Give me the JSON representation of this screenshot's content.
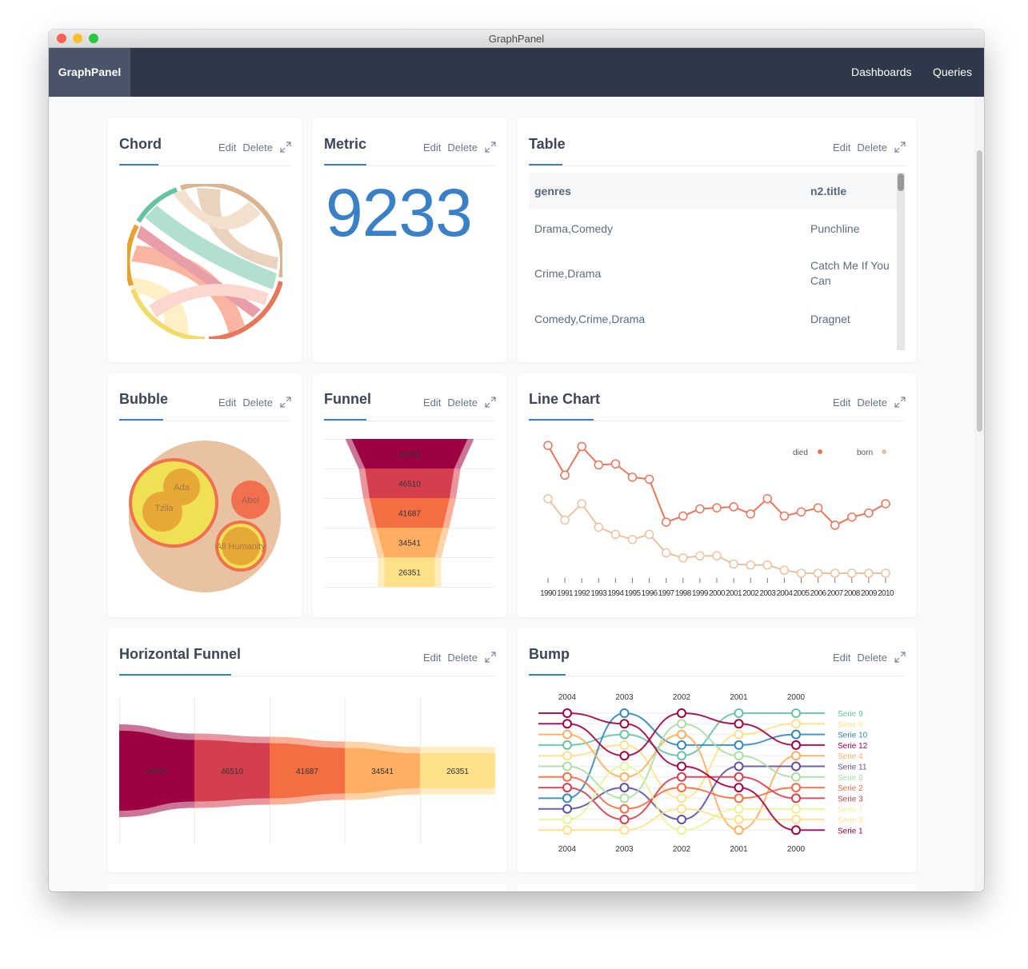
{
  "window": {
    "title": "GraphPanel"
  },
  "nav": {
    "brand": "GraphPanel",
    "links": [
      "Dashboards",
      "Queries"
    ]
  },
  "actions": {
    "edit": "Edit",
    "delete": "Delete"
  },
  "panels": {
    "chord": {
      "title": "Chord"
    },
    "metric": {
      "title": "Metric",
      "value": "9233"
    },
    "table": {
      "title": "Table",
      "headers": [
        "genres",
        "n2.title"
      ],
      "rows": [
        [
          "Drama,Comedy",
          "Punchline"
        ],
        [
          "Crime,Drama",
          "Catch Me If You Can"
        ],
        [
          "Comedy,Crime,Drama",
          "Dragnet"
        ]
      ]
    },
    "bubble": {
      "title": "Bubble",
      "labels": [
        "Ada",
        "Tzila",
        "Abel",
        "All Humanity"
      ]
    },
    "funnel": {
      "title": "Funnel"
    },
    "line": {
      "title": "Line Chart"
    },
    "hfunnel": {
      "title": "Horizontal Funnel"
    },
    "bump": {
      "title": "Bump"
    }
  },
  "chart_data": [
    {
      "type": "funnel",
      "values": [
        60491,
        46510,
        41687,
        34541,
        26351
      ],
      "colors": [
        "#9e0142",
        "#d53e4f",
        "#f46d43",
        "#fdae61",
        "#fee08b"
      ]
    },
    {
      "type": "line",
      "x": [
        1990,
        1991,
        1992,
        1993,
        1994,
        1995,
        1996,
        1997,
        1998,
        1999,
        2000,
        2001,
        2002,
        2003,
        2004,
        2005,
        2006,
        2007,
        2008,
        2009,
        2010
      ],
      "series": [
        {
          "name": "died",
          "color": "#e8765a",
          "values": [
            82,
            53,
            81,
            63,
            64,
            51,
            49,
            7,
            13,
            20,
            21,
            22,
            15,
            30,
            13,
            17,
            21,
            4,
            12,
            16,
            25
          ]
        },
        {
          "name": "born",
          "color": "#e9c3a1",
          "values": [
            30,
            9,
            25,
            2,
            -5,
            -10,
            -5,
            -23,
            -28,
            -26,
            -26,
            -34,
            -35,
            -35,
            -40,
            -43,
            -43,
            -43,
            -43,
            -43,
            -43
          ]
        }
      ],
      "legend": "top-right"
    },
    {
      "type": "funnel-horizontal",
      "values": [
        60491,
        46510,
        41687,
        34541,
        26351
      ],
      "colors": [
        "#9e0142",
        "#d53e4f",
        "#f46d43",
        "#fdae61",
        "#fee08b"
      ]
    },
    {
      "type": "bump",
      "x": [
        "2004",
        "2003",
        "2002",
        "2001",
        "2000"
      ],
      "series": [
        {
          "name": "Serie 9",
          "color": "#66c2a5",
          "ranks": [
            4,
            3,
            5,
            1,
            1
          ]
        },
        {
          "name": "Serie 6",
          "color": "#fee08b",
          "ranks": [
            5,
            4,
            9,
            3,
            2
          ]
        },
        {
          "name": "Serie 10",
          "color": "#3288bd",
          "ranks": [
            9,
            1,
            4,
            4,
            3
          ]
        },
        {
          "name": "Serie 12",
          "color": "#9e0142",
          "ranks": [
            2,
            5,
            1,
            2,
            4
          ]
        },
        {
          "name": "Serie 4",
          "color": "#fdae61",
          "ranks": [
            3,
            7,
            3,
            12,
            5
          ]
        },
        {
          "name": "Serie 11",
          "color": "#5e4fa2",
          "ranks": [
            10,
            8,
            11,
            6,
            6
          ]
        },
        {
          "name": "Serie 8",
          "color": "#abdda4",
          "ranks": [
            6,
            9,
            2,
            5,
            7
          ]
        },
        {
          "name": "Serie 2",
          "color": "#f46d43",
          "ranks": [
            7,
            10,
            8,
            9,
            8
          ]
        },
        {
          "name": "Serie 3",
          "color": "#d53e4f",
          "ranks": [
            8,
            11,
            7,
            7,
            9
          ]
        },
        {
          "name": "Serie 7",
          "color": "#e6f598",
          "ranks": [
            11,
            6,
            12,
            10,
            10
          ]
        },
        {
          "name": "Serie 5",
          "color": "#fee08b",
          "ranks": [
            12,
            12,
            10,
            11,
            11
          ]
        },
        {
          "name": "Serie 1",
          "color": "#9e0142",
          "ranks": [
            1,
            2,
            6,
            8,
            12
          ]
        }
      ]
    }
  ]
}
